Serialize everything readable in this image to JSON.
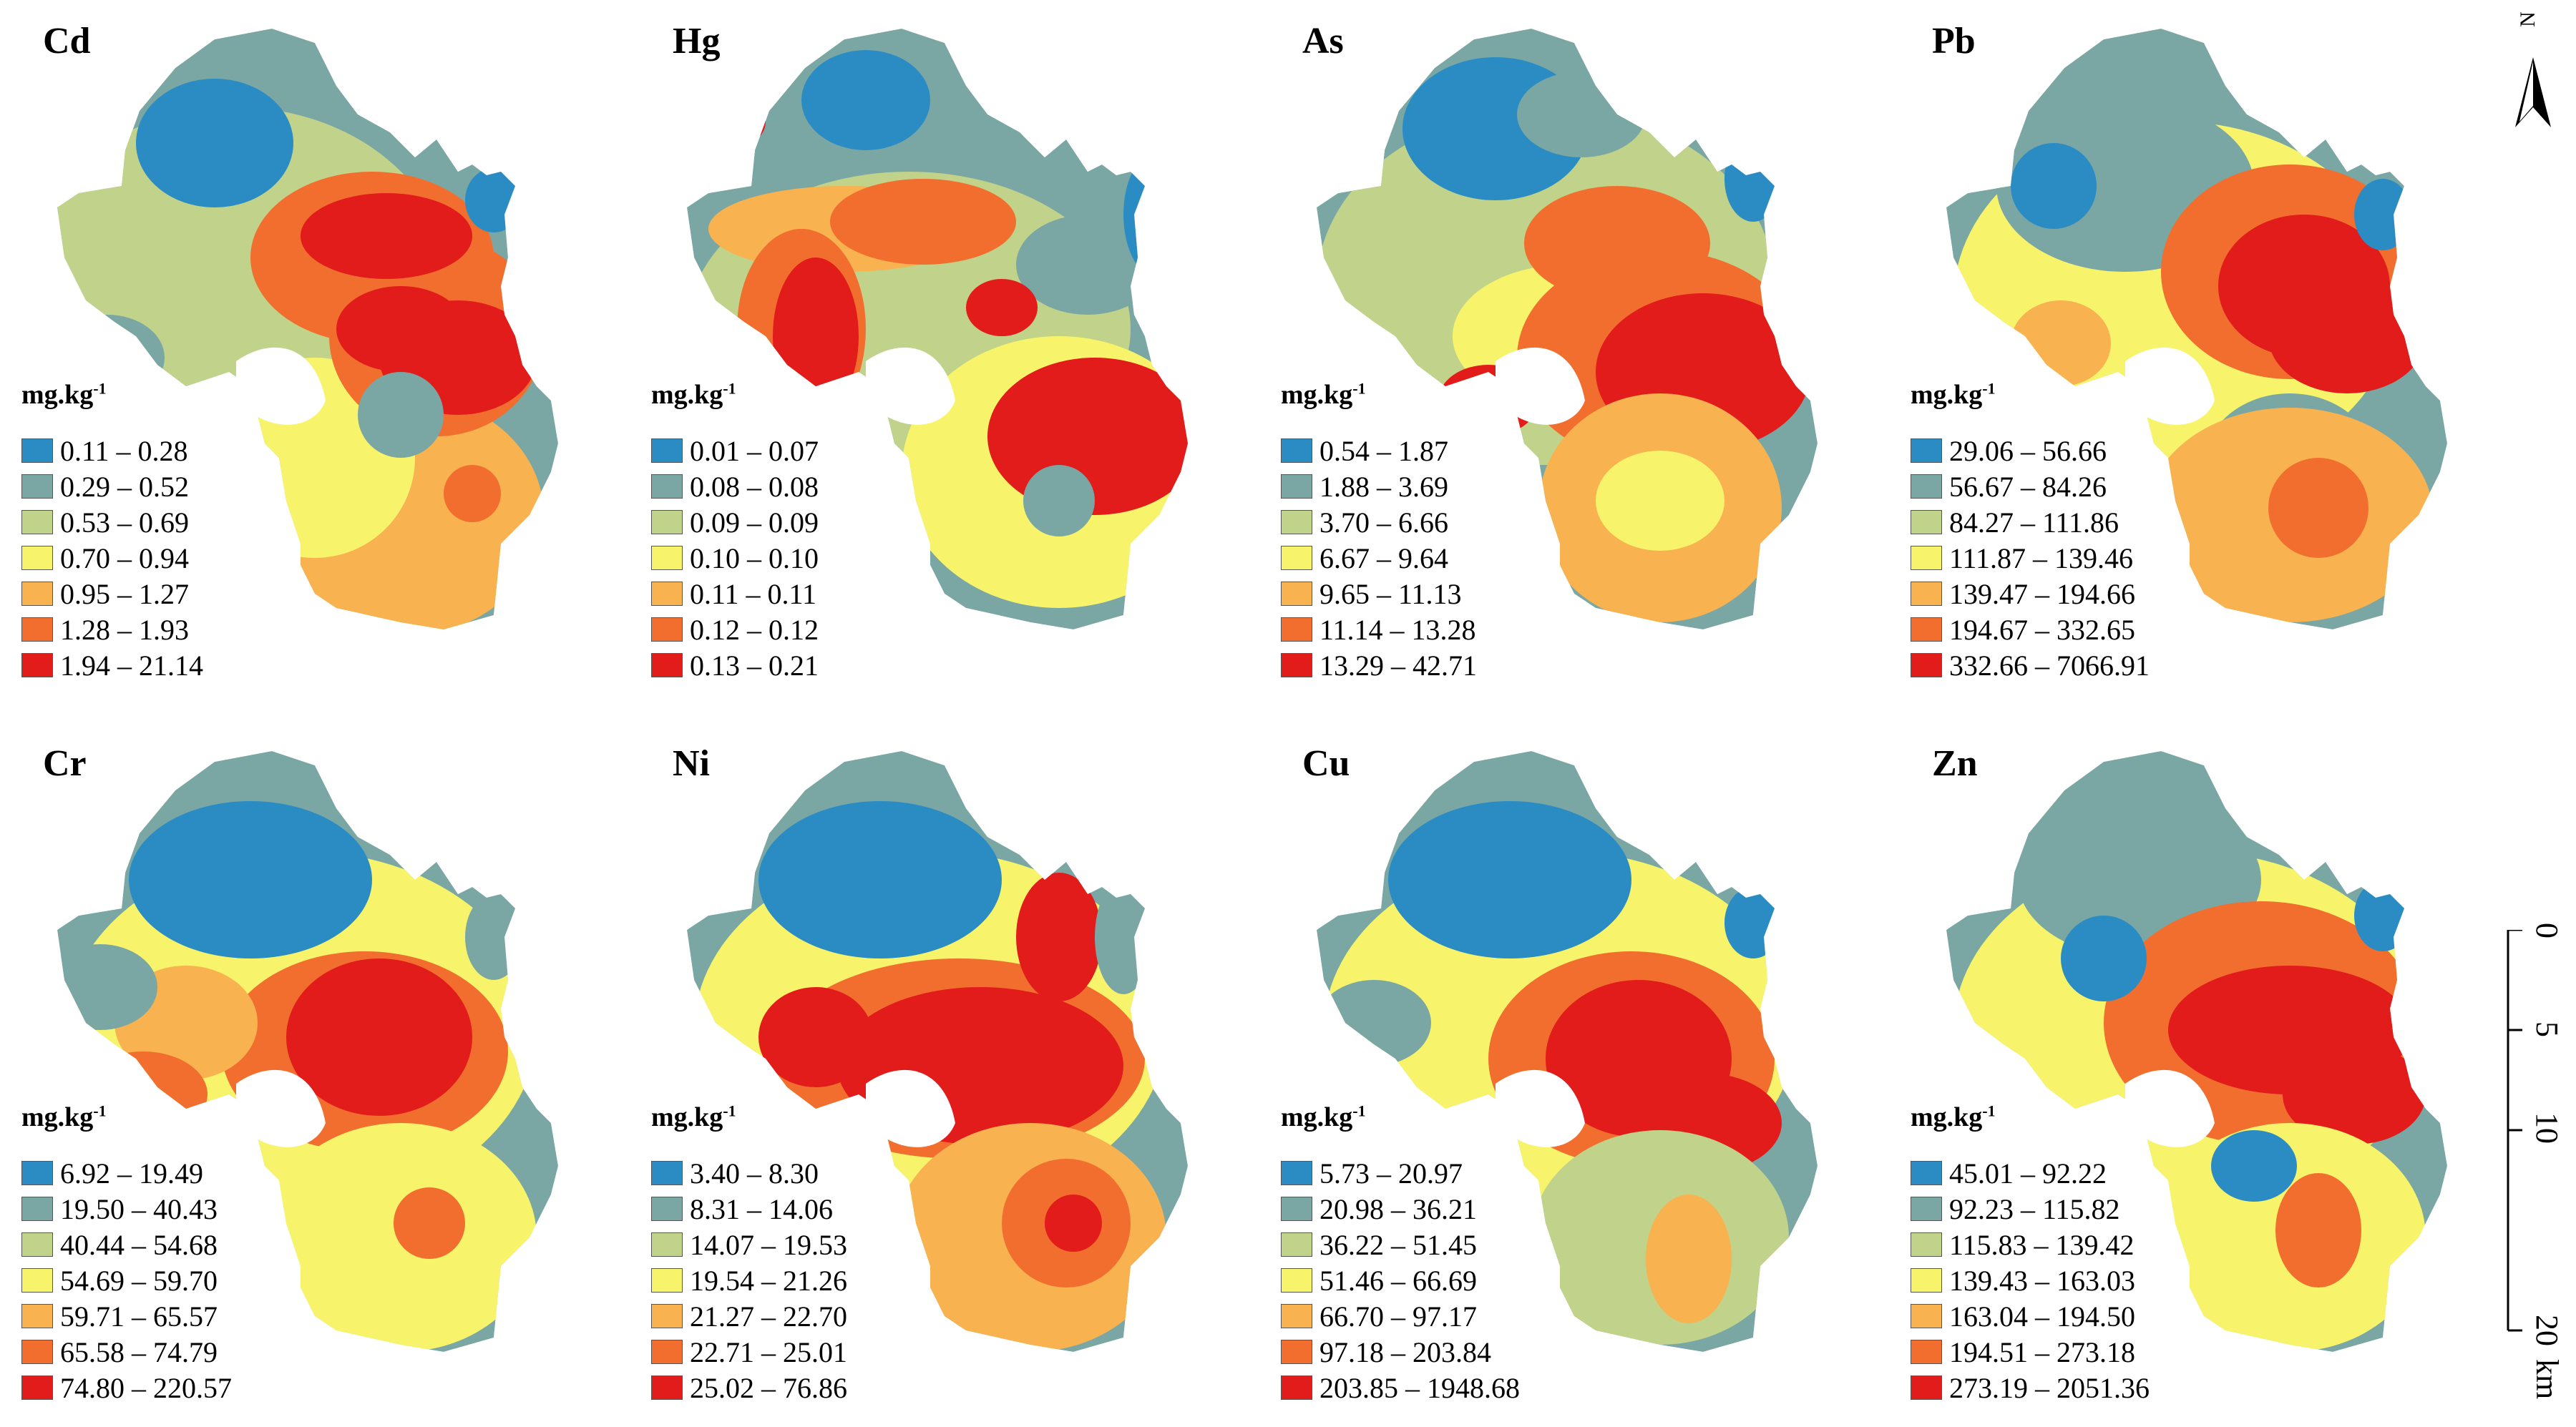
{
  "unit_label": {
    "base": "mg.kg",
    "exp": "-1"
  },
  "colors": [
    "#2b8cc4",
    "#7aa7a4",
    "#c1d28a",
    "#f7f46b",
    "#f8b24f",
    "#f26e2f",
    "#e21b1b"
  ],
  "panels": [
    {
      "element": "Cd",
      "ranges": [
        "0.11 – 0.28",
        "0.29 – 0.52",
        "0.53 – 0.69",
        "0.70 – 0.94",
        "0.95 – 1.27",
        "1.28 – 1.93",
        "1.94 – 21.14"
      ]
    },
    {
      "element": "Hg",
      "ranges": [
        "0.01 – 0.07",
        "0.08 – 0.08",
        "0.09 – 0.09",
        "0.10 – 0.10",
        "0.11 – 0.11",
        "0.12 – 0.12",
        "0.13 – 0.21"
      ]
    },
    {
      "element": "As",
      "ranges": [
        "0.54 – 1.87",
        "1.88 – 3.69",
        "3.70 – 6.66",
        "6.67 – 9.64",
        "9.65 – 11.13",
        "11.14 – 13.28",
        "13.29 – 42.71"
      ]
    },
    {
      "element": "Pb",
      "ranges": [
        "29.06 – 56.66",
        "56.67 – 84.26",
        "84.27 – 111.86",
        "111.87 – 139.46",
        "139.47 – 194.66",
        "194.67 – 332.65",
        "332.66 – 7066.91"
      ]
    },
    {
      "element": "Cr",
      "ranges": [
        "6.92 – 19.49",
        "19.50 – 40.43",
        "40.44 – 54.68",
        "54.69 – 59.70",
        "59.71 – 65.57",
        "65.58 – 74.79",
        "74.80 – 220.57"
      ]
    },
    {
      "element": "Ni",
      "ranges": [
        "3.40 – 8.30",
        "8.31 – 14.06",
        "14.07 – 19.53",
        "19.54 – 21.26",
        "21.27 – 22.70",
        "22.71 – 25.01",
        "25.02 – 76.86"
      ]
    },
    {
      "element": "Cu",
      "ranges": [
        "5.73 – 20.97",
        "20.98 – 36.21",
        "36.22 – 51.45",
        "51.46 – 66.69",
        "66.70 – 97.17",
        "97.18 – 203.84",
        "203.85 – 1948.68"
      ]
    },
    {
      "element": "Zn",
      "ranges": [
        "45.01 – 92.22",
        "92.23 – 115.82",
        "115.83 – 139.42",
        "139.43 – 163.03",
        "163.04 – 194.50",
        "194.51 – 273.18",
        "273.19 – 2051.36"
      ]
    }
  ],
  "north_label": "N",
  "scale_bar": {
    "ticks": [
      "0",
      "5",
      "10",
      "20"
    ],
    "unit": "km"
  }
}
